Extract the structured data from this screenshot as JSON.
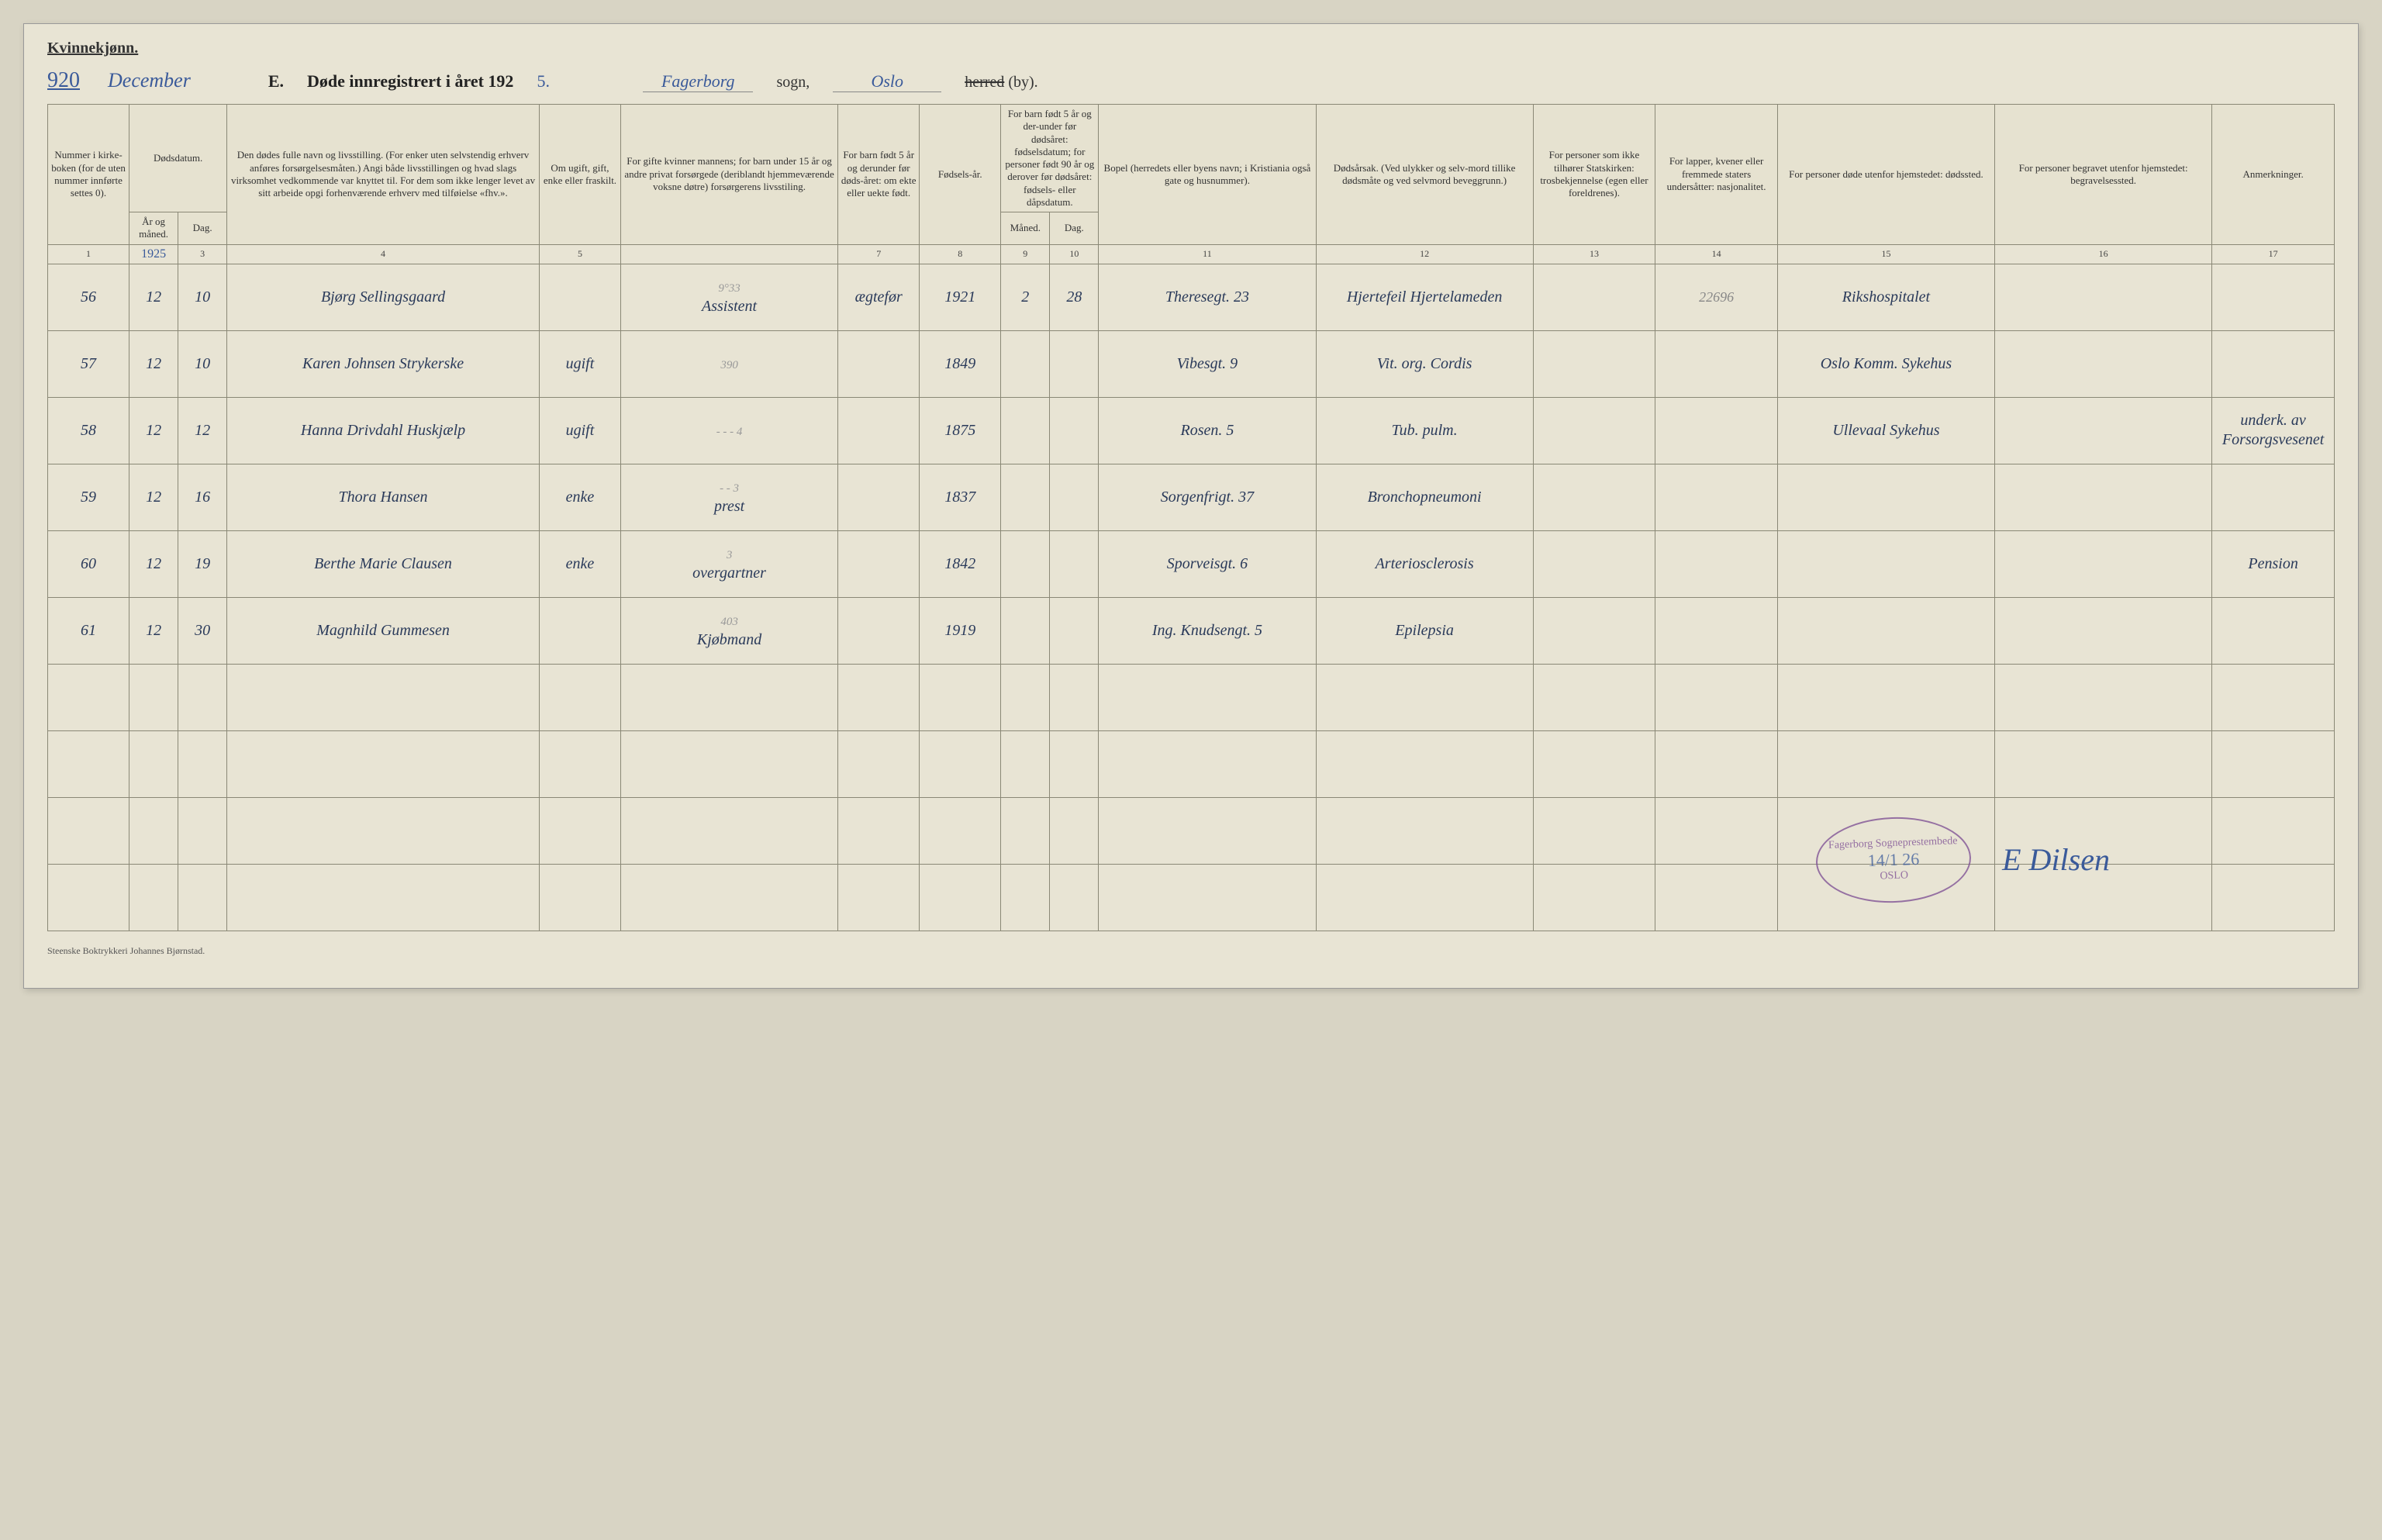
{
  "header": {
    "gender_label": "Kvinnekjønn.",
    "page_number": "920",
    "month": "December",
    "title_letter": "E.",
    "title_text": "Døde innregistrert i året 192",
    "title_year_suffix": "5.",
    "parish": "Fagerborg",
    "label_sogn": "sogn,",
    "district": "Oslo",
    "label_herred": "herred",
    "label_by": "(by)."
  },
  "columns": {
    "c1": "Nummer i kirke-boken (for de uten nummer innførte settes 0).",
    "c2a": "Dødsdatum.",
    "c2b_year": "År og måned.",
    "c2b_day": "Dag.",
    "c3": "Den dødes fulle navn og livsstilling. (For enker uten selvstendig erhverv anføres forsørgelsesmåten.) Angi både livsstillingen og hvad slags virksomhet vedkommende var knyttet til. For dem som ikke lenger levet av sitt arbeide opgi forhenværende erhverv med tilføielse «fhv.».",
    "c4": "Om ugift, gift, enke eller fraskilt.",
    "c5": "For gifte kvinner mannens; for barn under 15 år og andre privat forsørgede (deriblandt hjemmeværende voksne døtre) forsørgerens livsstiling.",
    "c6": "For barn født 5 år og derunder før døds-året: om ekte eller uekte født.",
    "c7": "Fødsels-år.",
    "c8_top": "For barn født 5 år og der-under før dødsåret: fødselsdatum; for personer født 90 år og derover før dødsåret: fødsels- eller dåpsdatum.",
    "c8_m": "Måned.",
    "c8_d": "Dag.",
    "c9": "Bopel (herredets eller byens navn; i Kristiania også gate og husnummer).",
    "c10": "Dødsårsak. (Ved ulykker og selv-mord tillike dødsmåte og ved selvmord beveggrunn.)",
    "c11": "For personer som ikke tilhører Statskirken: trosbekjennelse (egen eller foreldrenes).",
    "c12": "For lapper, kvener eller fremmede staters undersåtter: nasjonalitet.",
    "c13": "For personer døde utenfor hjemstedet: dødssted.",
    "c14": "For personer begravet utenfor hjemstedet: begravelsessted.",
    "c15": "Anmerkninger."
  },
  "colnums": [
    "1",
    "",
    "3",
    "4",
    "5",
    "",
    "7",
    "8",
    "9",
    "10",
    "11",
    "12",
    "13",
    "14",
    "15",
    "16",
    "17"
  ],
  "colnum_year": "1925",
  "rows": [
    {
      "check": "✓",
      "num": "56",
      "year_month": "12",
      "day": "10",
      "name": "Bjørg Sellingsgaard",
      "status": "",
      "spouse": "Assistent",
      "pencil_spouse": "9°33",
      "legit": "ægtefør",
      "birth_year": "1921",
      "bm": "2",
      "bd": "28",
      "address": "Theresegt. 23",
      "cause": "Hjertefeil Hjertelameden",
      "col13": "",
      "col14": "22696",
      "death_place": "Rikshospitalet",
      "burial": "",
      "remarks": ""
    },
    {
      "check": "✓",
      "num": "57",
      "year_month": "12",
      "day": "10",
      "name": "Karen Johnsen Strykerske",
      "status": "ugift",
      "spouse": "",
      "pencil_spouse": "390",
      "legit": "",
      "birth_year": "1849",
      "bm": "",
      "bd": "",
      "address": "Vibesgt. 9",
      "cause": "Vit. org. Cordis",
      "col13": "",
      "col14": "",
      "death_place": "Oslo Komm. Sykehus",
      "burial": "",
      "remarks": ""
    },
    {
      "check": "✓",
      "num": "58",
      "year_month": "12",
      "day": "12",
      "name": "Hanna Drivdahl  Huskjælp",
      "status": "ugift",
      "spouse": "",
      "pencil_spouse": "- - - 4",
      "legit": "",
      "birth_year": "1875",
      "bm": "",
      "bd": "",
      "address": "Rosen. 5",
      "cause": "Tub. pulm.",
      "col13": "",
      "col14": "",
      "death_place": "Ullevaal Sykehus",
      "burial": "",
      "remarks": "underk. av Forsorgsvesenet"
    },
    {
      "check": "✓",
      "num": "59",
      "year_month": "12",
      "day": "16",
      "name": "Thora Hansen",
      "status": "enke",
      "spouse": "prest",
      "pencil_spouse": "- - 3",
      "legit": "",
      "birth_year": "1837",
      "bm": "",
      "bd": "",
      "address": "Sorgenfrigt. 37",
      "cause": "Bronchopneumoni",
      "col13": "",
      "col14": "",
      "death_place": "",
      "burial": "",
      "remarks": ""
    },
    {
      "check": "✓",
      "num": "60",
      "year_month": "12",
      "day": "19",
      "name": "Berthe Marie Clausen",
      "status": "enke",
      "spouse": "overgartner",
      "pencil_spouse": "3",
      "legit": "",
      "birth_year": "1842",
      "bm": "",
      "bd": "",
      "address": "Sporveisgt. 6",
      "cause": "Arteriosclerosis",
      "col13": "",
      "col14": "",
      "death_place": "",
      "burial": "",
      "remarks": "Pension"
    },
    {
      "check": "✓",
      "num": "61",
      "year_month": "12",
      "day": "30",
      "name": "Magnhild Gummesen",
      "status": "",
      "spouse": "Kjøbmand",
      "pencil_spouse": "403",
      "legit": "",
      "birth_year": "1919",
      "bm": "",
      "bd": "",
      "address": "Ing. Knudsengt. 5",
      "cause": "Epilepsia",
      "col13": "",
      "col14": "",
      "death_place": "",
      "burial": "",
      "remarks": ""
    }
  ],
  "empty_rows": 4,
  "stamp": {
    "top_text": "Fagerborg Sogneprestembede",
    "date": "14/1 26",
    "bottom_text": "OSLO"
  },
  "signature": "E Dilsen",
  "footer": "Steenske Boktrykkeri Johannes Bjørnstad.",
  "colors": {
    "paper": "#e8e4d4",
    "ink": "#3a5a9a",
    "stamp": "#7a4a92",
    "rule": "#8a8876"
  }
}
